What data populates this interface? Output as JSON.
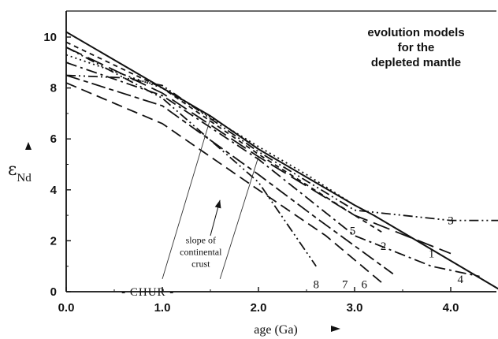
{
  "chart_data": {
    "type": "line",
    "title": "evolution models\nfor the\ndepleted mantle",
    "xlabel": "age (Ga)",
    "ylabel": "εNd",
    "xlim": [
      0,
      4.5
    ],
    "ylim": [
      0,
      11
    ],
    "x_ticks": [
      0,
      1,
      2,
      3,
      4
    ],
    "x_tick_labels": [
      "0.0",
      "1.0",
      "2.0",
      "3.0",
      "4.0"
    ],
    "y_ticks": [
      0,
      2,
      4,
      6,
      8,
      10
    ],
    "y_tick_labels": [
      "0",
      "2",
      "4",
      "6",
      "8",
      "10"
    ],
    "grid": false,
    "series": [
      {
        "name": "",
        "style": "solid",
        "x": [
          0,
          1.5,
          2.0,
          2.5,
          3.0,
          3.2,
          4.5
        ],
        "y": [
          10.2,
          6.9,
          5.6,
          4.5,
          3.4,
          3.0,
          0.1
        ]
      },
      {
        "name": "1",
        "style": "longdash",
        "x": [
          0,
          1.0,
          2.0,
          3.0,
          4.0
        ],
        "y": [
          9.6,
          7.8,
          5.3,
          3.0,
          1.5
        ]
      },
      {
        "name": "2",
        "style": "shortdash",
        "x": [
          0,
          1.0,
          2.0,
          3.0,
          3.3
        ],
        "y": [
          9.8,
          8.0,
          5.4,
          3.0,
          2.3
        ]
      },
      {
        "name": "3",
        "style": "dashdotdot",
        "x": [
          0,
          0.6,
          1.0,
          2.0,
          3.0,
          3.5,
          4.0,
          4.5
        ],
        "y": [
          8.5,
          8.4,
          8.1,
          5.5,
          3.2,
          3.0,
          2.8,
          2.8
        ]
      },
      {
        "name": "4",
        "style": "dashdot",
        "x": [
          0,
          1.0,
          2.0,
          3.0,
          3.8,
          4.3
        ],
        "y": [
          9.0,
          7.7,
          5.2,
          2.2,
          1.0,
          0.6
        ]
      },
      {
        "name": "5",
        "style": "dotted",
        "x": [
          0,
          1.0,
          2.0,
          2.5,
          3.0
        ],
        "y": [
          9.3,
          8.0,
          5.7,
          4.6,
          3.4
        ]
      },
      {
        "name": "6",
        "style": "mixed-dash",
        "x": [
          0,
          1.0,
          2.0,
          2.6,
          3.4
        ],
        "y": [
          8.5,
          7.3,
          4.6,
          2.9,
          0.7
        ]
      },
      {
        "name": "7",
        "style": "mediumdash",
        "x": [
          0,
          0.5,
          1.0,
          2.0,
          2.7,
          3.3
        ],
        "y": [
          8.2,
          7.4,
          6.6,
          4.0,
          2.2,
          0.3
        ]
      },
      {
        "name": "8",
        "style": "dashdotdot",
        "x": [
          0,
          1.0,
          2.0,
          2.6
        ],
        "y": [
          9.6,
          7.6,
          4.3,
          1.0
        ]
      }
    ],
    "series_label_positions": [
      {
        "label": "1",
        "x": 3.8,
        "y": 1.5
      },
      {
        "label": "2",
        "x": 3.3,
        "y": 1.8
      },
      {
        "label": "3",
        "x": 4.0,
        "y": 2.8
      },
      {
        "label": "4",
        "x": 4.1,
        "y": 0.5
      },
      {
        "label": "5",
        "x": 2.98,
        "y": 2.4
      },
      {
        "label": "6",
        "x": 3.1,
        "y": 0.3
      },
      {
        "label": "7",
        "x": 2.9,
        "y": 0.3
      },
      {
        "label": "8",
        "x": 2.6,
        "y": 0.3
      }
    ],
    "crust_lines": [
      {
        "x": [
          1.5,
          1.0
        ],
        "y": [
          6.8,
          0.5
        ]
      },
      {
        "x": [
          2.0,
          1.6
        ],
        "y": [
          5.3,
          0.5
        ]
      }
    ],
    "crust_arrow": {
      "from": [
        1.5,
        2.2
      ],
      "to": [
        1.6,
        3.6
      ]
    },
    "annotations": [
      {
        "text": "slope of\ncontinental\ncrust",
        "x": 1.4,
        "y": 1.9
      },
      {
        "text": "- CHUR -",
        "x": 0.85,
        "y": 0.0
      }
    ]
  }
}
